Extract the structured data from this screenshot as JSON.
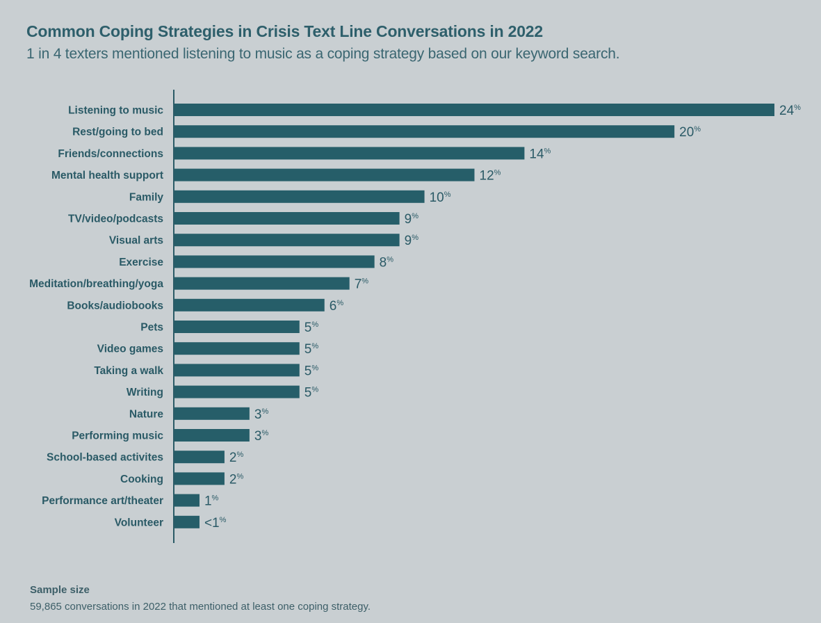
{
  "chart_data": {
    "type": "bar",
    "orientation": "horizontal",
    "title": "Common Coping Strategies in Crisis Text Line Conversations in 2022",
    "subtitle": "1 in 4 texters mentioned listening to music as a coping strategy based on our keyword search.",
    "xlabel": "",
    "ylabel": "",
    "xlim": [
      0,
      24
    ],
    "grid": false,
    "categories": [
      "Listening to music",
      "Rest/going to bed",
      "Friends/connections",
      "Mental health support",
      "Family",
      "TV/video/podcasts",
      "Visual arts",
      "Exercise",
      "Meditation/breathing/yoga",
      "Books/audiobooks",
      "Pets",
      "Video games",
      "Taking a walk",
      "Writing",
      "Nature",
      "Performing music",
      "School-based activites",
      "Cooking",
      "Performance art/theater",
      "Volunteer"
    ],
    "values": [
      24,
      20,
      14,
      12,
      10,
      9,
      9,
      8,
      7,
      6,
      5,
      5,
      5,
      5,
      3,
      3,
      2,
      2,
      1,
      1
    ],
    "value_labels": [
      "24",
      "20",
      "14",
      "12",
      "10",
      "9",
      "9",
      "8",
      "7",
      "6",
      "5",
      "5",
      "5",
      "5",
      "3",
      "3",
      "2",
      "2",
      "1",
      "<1"
    ],
    "value_suffix": "%",
    "bar_color": "#265e69"
  },
  "footer": {
    "title": "Sample size",
    "text": "59,865 conversations in 2022 that mentioned at least one coping strategy."
  }
}
